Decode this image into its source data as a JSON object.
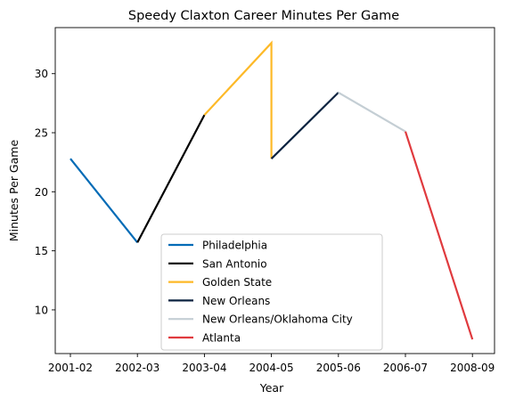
{
  "chart_data": {
    "type": "line",
    "title": "Speedy Claxton Career Minutes Per Game",
    "xlabel": "Year",
    "ylabel": "Minutes Per Game",
    "categories": [
      "2001-02",
      "2002-03",
      "2003-04",
      "2004-05",
      "2005-06",
      "2006-07",
      "2008-09"
    ],
    "ylim": [
      6.3,
      33.9
    ],
    "yticks": [
      10,
      15,
      20,
      25,
      30
    ],
    "grid": false,
    "legend_position": "lower center",
    "series": [
      {
        "name": "Philadelphia",
        "color": "#006BB6",
        "x": [
          "2001-02",
          "2002-03"
        ],
        "y": [
          22.8,
          15.7
        ]
      },
      {
        "name": "San Antonio",
        "color": "#000000",
        "x": [
          "2002-03",
          "2003-04"
        ],
        "y": [
          15.7,
          26.5
        ]
      },
      {
        "name": "Golden State",
        "color": "#FDB927",
        "x": [
          "2003-04",
          "2004-05",
          "2004-05"
        ],
        "y": [
          26.5,
          32.6,
          22.8
        ]
      },
      {
        "name": "New Orleans",
        "color": "#0C2340",
        "x": [
          "2004-05",
          "2005-06"
        ],
        "y": [
          22.8,
          28.4
        ]
      },
      {
        "name": "New Orleans/Oklahoma City",
        "color": "#C4CED4",
        "x": [
          "2005-06",
          "2006-07"
        ],
        "y": [
          28.4,
          25.1
        ]
      },
      {
        "name": "Atlanta",
        "color": "#E03A3E",
        "x": [
          "2006-07",
          "2008-09"
        ],
        "y": [
          25.1,
          7.5
        ]
      }
    ]
  }
}
